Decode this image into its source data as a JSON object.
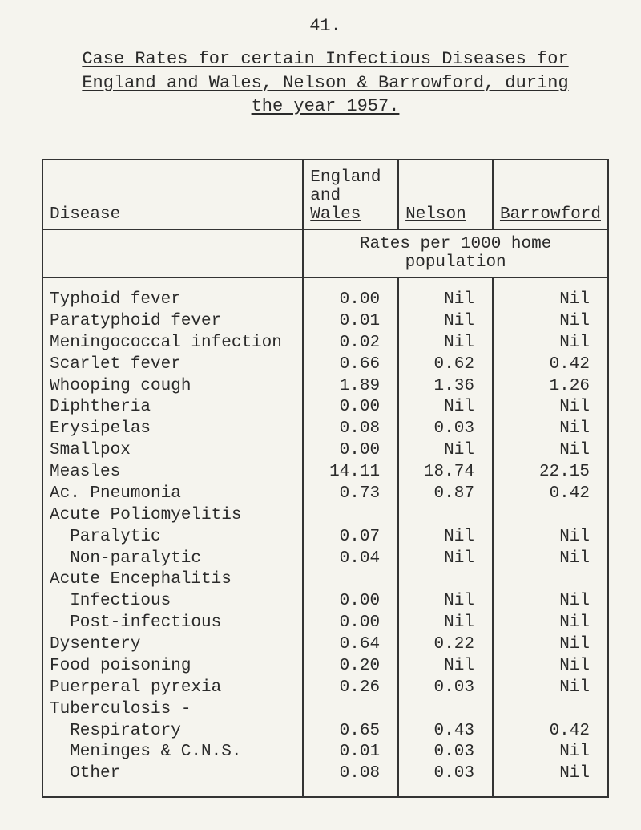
{
  "page_number": "41.",
  "title": {
    "line1": "Case Rates for certain Infectious Diseases for",
    "line2": "England and Wales, Nelson & Barrowford, during",
    "line3": "the year 1957."
  },
  "headers": {
    "disease": "Disease",
    "england_wales": "England\nand\nWales",
    "nelson": "Nelson",
    "barrowford": "Barrowford",
    "rates_note": "Rates per 1000 home population"
  },
  "rows": [
    {
      "disease": "Typhoid fever",
      "ew": "0.00",
      "nelson": "Nil",
      "barrow": "Nil",
      "indent": 0
    },
    {
      "disease": "Paratyphoid fever",
      "ew": "0.01",
      "nelson": "Nil",
      "barrow": "Nil",
      "indent": 0
    },
    {
      "disease": "Meningococcal infection",
      "ew": "0.02",
      "nelson": "Nil",
      "barrow": "Nil",
      "indent": 0
    },
    {
      "disease": "Scarlet fever",
      "ew": "0.66",
      "nelson": "0.62",
      "barrow": "0.42",
      "indent": 0
    },
    {
      "disease": "Whooping cough",
      "ew": "1.89",
      "nelson": "1.36",
      "barrow": "1.26",
      "indent": 0
    },
    {
      "disease": "Diphtheria",
      "ew": "0.00",
      "nelson": "Nil",
      "barrow": "Nil",
      "indent": 0
    },
    {
      "disease": "Erysipelas",
      "ew": "0.08",
      "nelson": "0.03",
      "barrow": "Nil",
      "indent": 0
    },
    {
      "disease": "Smallpox",
      "ew": "0.00",
      "nelson": "Nil",
      "barrow": "Nil",
      "indent": 0
    },
    {
      "disease": "Measles",
      "ew": "14.11",
      "nelson": "18.74",
      "barrow": "22.15",
      "indent": 0
    },
    {
      "disease": "Ac. Pneumonia",
      "ew": "0.73",
      "nelson": "0.87",
      "barrow": "0.42",
      "indent": 0
    },
    {
      "disease": "Acute Poliomyelitis",
      "ew": "",
      "nelson": "",
      "barrow": "",
      "indent": 0
    },
    {
      "disease": "Paralytic",
      "ew": "0.07",
      "nelson": "Nil",
      "barrow": "Nil",
      "indent": 1
    },
    {
      "disease": "Non-paralytic",
      "ew": "0.04",
      "nelson": "Nil",
      "barrow": "Nil",
      "indent": 1
    },
    {
      "disease": "Acute Encephalitis",
      "ew": "",
      "nelson": "",
      "barrow": "",
      "indent": 0
    },
    {
      "disease": "Infectious",
      "ew": "0.00",
      "nelson": "Nil",
      "barrow": "Nil",
      "indent": 1
    },
    {
      "disease": "Post-infectious",
      "ew": "0.00",
      "nelson": "Nil",
      "barrow": "Nil",
      "indent": 1
    },
    {
      "disease": "Dysentery",
      "ew": "0.64",
      "nelson": "0.22",
      "barrow": "Nil",
      "indent": 0
    },
    {
      "disease": "Food poisoning",
      "ew": "0.20",
      "nelson": "Nil",
      "barrow": "Nil",
      "indent": 0
    },
    {
      "disease": "Puerperal pyrexia",
      "ew": "0.26",
      "nelson": "0.03",
      "barrow": "Nil",
      "indent": 0
    },
    {
      "disease": "Tuberculosis -",
      "ew": "",
      "nelson": "",
      "barrow": "",
      "indent": 0
    },
    {
      "disease": "Respiratory",
      "ew": "0.65",
      "nelson": "0.43",
      "barrow": "0.42",
      "indent": 1
    },
    {
      "disease": "Meninges & C.N.S.",
      "ew": "0.01",
      "nelson": "0.03",
      "barrow": "Nil",
      "indent": 1
    },
    {
      "disease": "Other",
      "ew": "0.08",
      "nelson": "0.03",
      "barrow": "Nil",
      "indent": 1
    }
  ]
}
